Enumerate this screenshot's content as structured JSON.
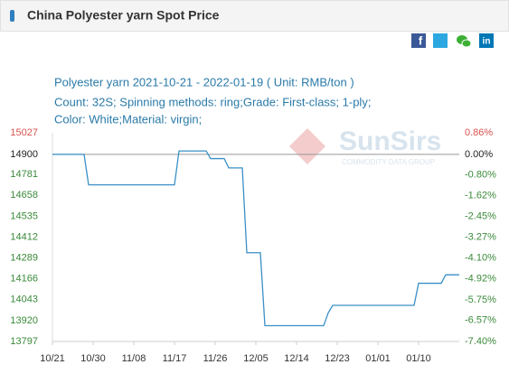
{
  "chart_data": {
    "type": "line",
    "title": "China Polyester yarn Spot Price",
    "subtitle_lines": [
      "Polyester yarn 2021-10-21 - 2022-01-19    ( Unit: RMB/ton )",
      "Count: 32S; Spinning methods: ring;Grade: First-class; 1-ply;",
      "Color: White;Material: virgin;"
    ],
    "watermark": {
      "name": "SunSirs",
      "tagline": "COMMODITY DATA GROUP"
    },
    "x": [
      "10/21",
      "10/28",
      "10/29",
      "11/17",
      "11/18",
      "11/24",
      "11/25",
      "11/28",
      "11/29",
      "12/02",
      "12/03",
      "12/06",
      "12/07",
      "12/20",
      "12/21",
      "12/22",
      "01/09",
      "01/10",
      "01/15",
      "01/16",
      "01/19"
    ],
    "series": [
      {
        "name": "Polyester yarn",
        "color": "#3a8fc6",
        "values": [
          14900,
          14900,
          14720,
          14720,
          14920,
          14920,
          14875,
          14875,
          14820,
          14820,
          14320,
          14320,
          13890,
          13890,
          13965,
          14010,
          14010,
          14140,
          14140,
          14190,
          14190
        ]
      }
    ],
    "xlim": [
      "10/21",
      "01/19"
    ],
    "xticks": [
      "10/21",
      "10/30",
      "11/08",
      "11/17",
      "11/26",
      "12/05",
      "12/14",
      "12/23",
      "01/01",
      "01/10"
    ],
    "ylim": [
      13797,
      15027
    ],
    "yticks": [
      15027,
      14900,
      14781,
      14658,
      14535,
      14412,
      14289,
      14166,
      14043,
      13920,
      13797
    ],
    "baseline": 14900,
    "y2lim": [
      -7.4,
      0.86
    ],
    "y2ticks": [
      {
        "value": 0.86,
        "label": "0.86%"
      },
      {
        "value": 0,
        "label": "0.00%"
      },
      {
        "value": -0.8,
        "label": "-0.80%"
      },
      {
        "value": -1.62,
        "label": "-1.62%"
      },
      {
        "value": -2.45,
        "label": "-2.45%"
      },
      {
        "value": -3.27,
        "label": "-3.27%"
      },
      {
        "value": -4.1,
        "label": "-4.10%"
      },
      {
        "value": -4.92,
        "label": "-4.92%"
      },
      {
        "value": -5.75,
        "label": "-5.75%"
      },
      {
        "value": -6.57,
        "label": "-6.57%"
      },
      {
        "value": -7.4,
        "label": "-7.40%"
      }
    ]
  }
}
